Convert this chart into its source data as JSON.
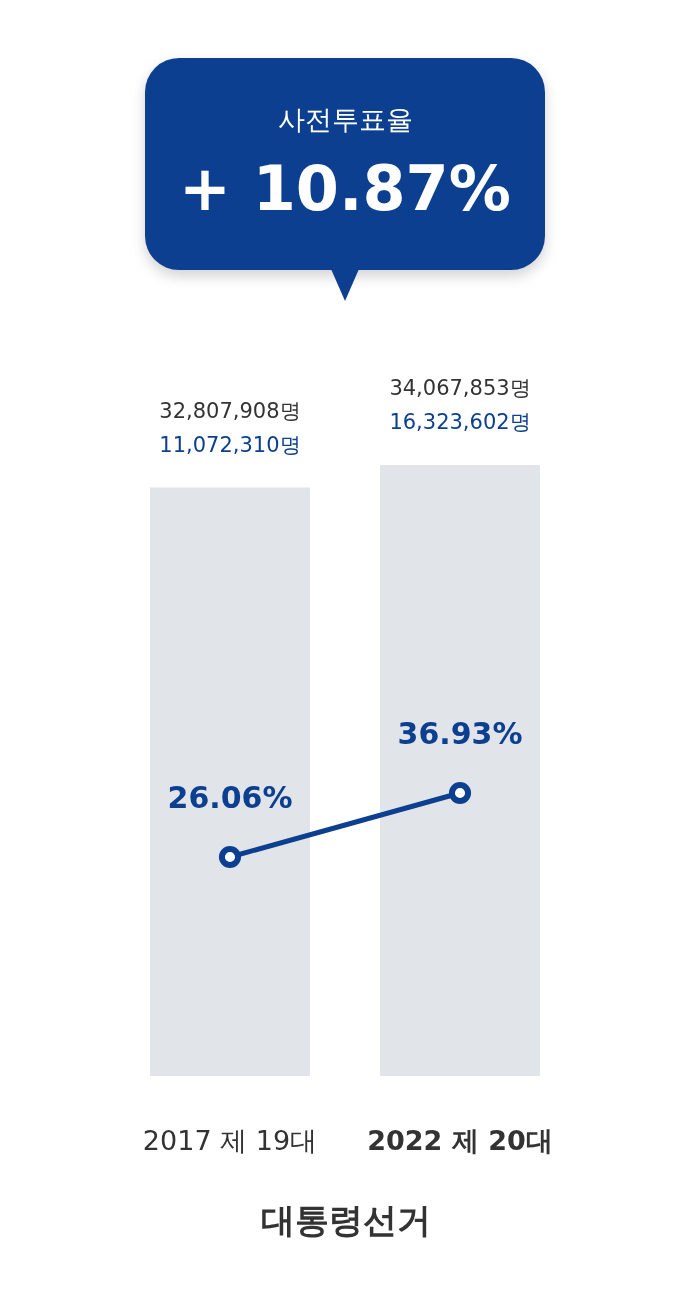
{
  "chart_data": {
    "type": "bar",
    "title": "사전투표율",
    "subtitle": "+ 10.87%",
    "xlabel": "대통령선거",
    "categories": [
      "2017 제 19대",
      "2022 제 20대"
    ],
    "tick_labels": "x",
    "series": [
      {
        "color": "#e1e4e8",
        "values": [
          32807908,
          34067853
        ],
        "value_labels": [
          "32,807,908명",
          "34,067,853명"
        ]
      },
      {
        "type": "line",
        "axis": "y2",
        "color": "#0d3f91",
        "marker": "circle",
        "values": [
          26.06,
          36.93
        ],
        "value_labels": [
          "26.06%",
          "36.93%"
        ]
      }
    ],
    "annotations": [
      "11,072,310명",
      "16,323,602명"
    ]
  }
}
